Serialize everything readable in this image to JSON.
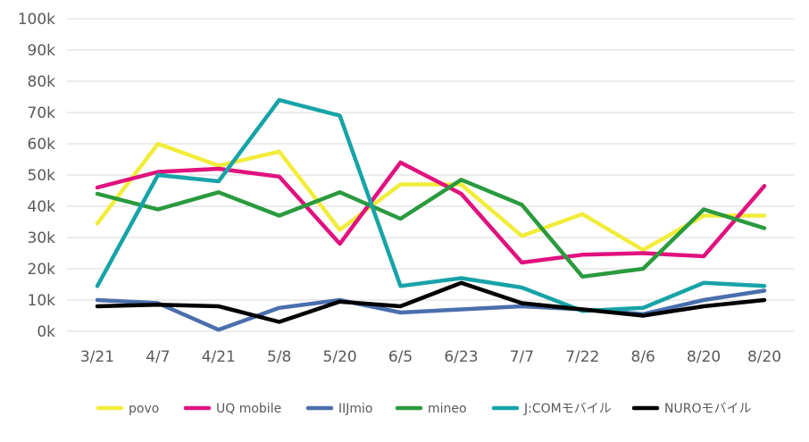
{
  "chart_data": {
    "type": "line",
    "title": "",
    "xlabel": "",
    "ylabel": "",
    "categories": [
      "3/21",
      "4/7",
      "4/21",
      "5/8",
      "5/20",
      "6/5",
      "6/23",
      "7/7",
      "7/22",
      "8/6",
      "8/20",
      "8/20"
    ],
    "ylim": [
      0,
      100000
    ],
    "yticks": [
      {
        "value": 0,
        "label": "0k"
      },
      {
        "value": 10000,
        "label": "10k"
      },
      {
        "value": 20000,
        "label": "20k"
      },
      {
        "value": 30000,
        "label": "30k"
      },
      {
        "value": 40000,
        "label": "40k"
      },
      {
        "value": 50000,
        "label": "50k"
      },
      {
        "value": 60000,
        "label": "60k"
      },
      {
        "value": 70000,
        "label": "70k"
      },
      {
        "value": 80000,
        "label": "80k"
      },
      {
        "value": 90000,
        "label": "90k"
      },
      {
        "value": 100000,
        "label": "100k"
      }
    ],
    "grid": true,
    "legend_position": "bottom",
    "series": [
      {
        "name": "povo",
        "color": "#f2ec3a",
        "values": [
          34500,
          60000,
          53000,
          57500,
          32500,
          47000,
          47000,
          30500,
          37500,
          26000,
          37000,
          37000
        ]
      },
      {
        "name": "UQ mobile",
        "color": "#e0127e",
        "values": [
          46000,
          51000,
          52000,
          49500,
          28000,
          54000,
          44000,
          22000,
          24500,
          25000,
          24000,
          46500
        ]
      },
      {
        "name": "IIJmio",
        "color": "#4a6fad",
        "values": [
          10000,
          9000,
          500,
          7500,
          10000,
          6000,
          7000,
          8000,
          7000,
          5500,
          10000,
          13000
        ]
      },
      {
        "name": "mineo",
        "color": "#2a9a3e",
        "values": [
          44000,
          39000,
          44500,
          37000,
          44500,
          36000,
          48500,
          40500,
          17500,
          20000,
          39000,
          33000
        ]
      },
      {
        "name": "J:COMモバイル",
        "color": "#17a3a8",
        "values": [
          14500,
          50000,
          48000,
          74000,
          69000,
          14500,
          17000,
          14000,
          6500,
          7500,
          15500,
          14500
        ]
      },
      {
        "name": "NUROモバイル",
        "color": "#000000",
        "values": [
          8000,
          8500,
          8000,
          3000,
          9500,
          8000,
          15500,
          9000,
          7000,
          5000,
          8000,
          10000
        ]
      }
    ]
  }
}
